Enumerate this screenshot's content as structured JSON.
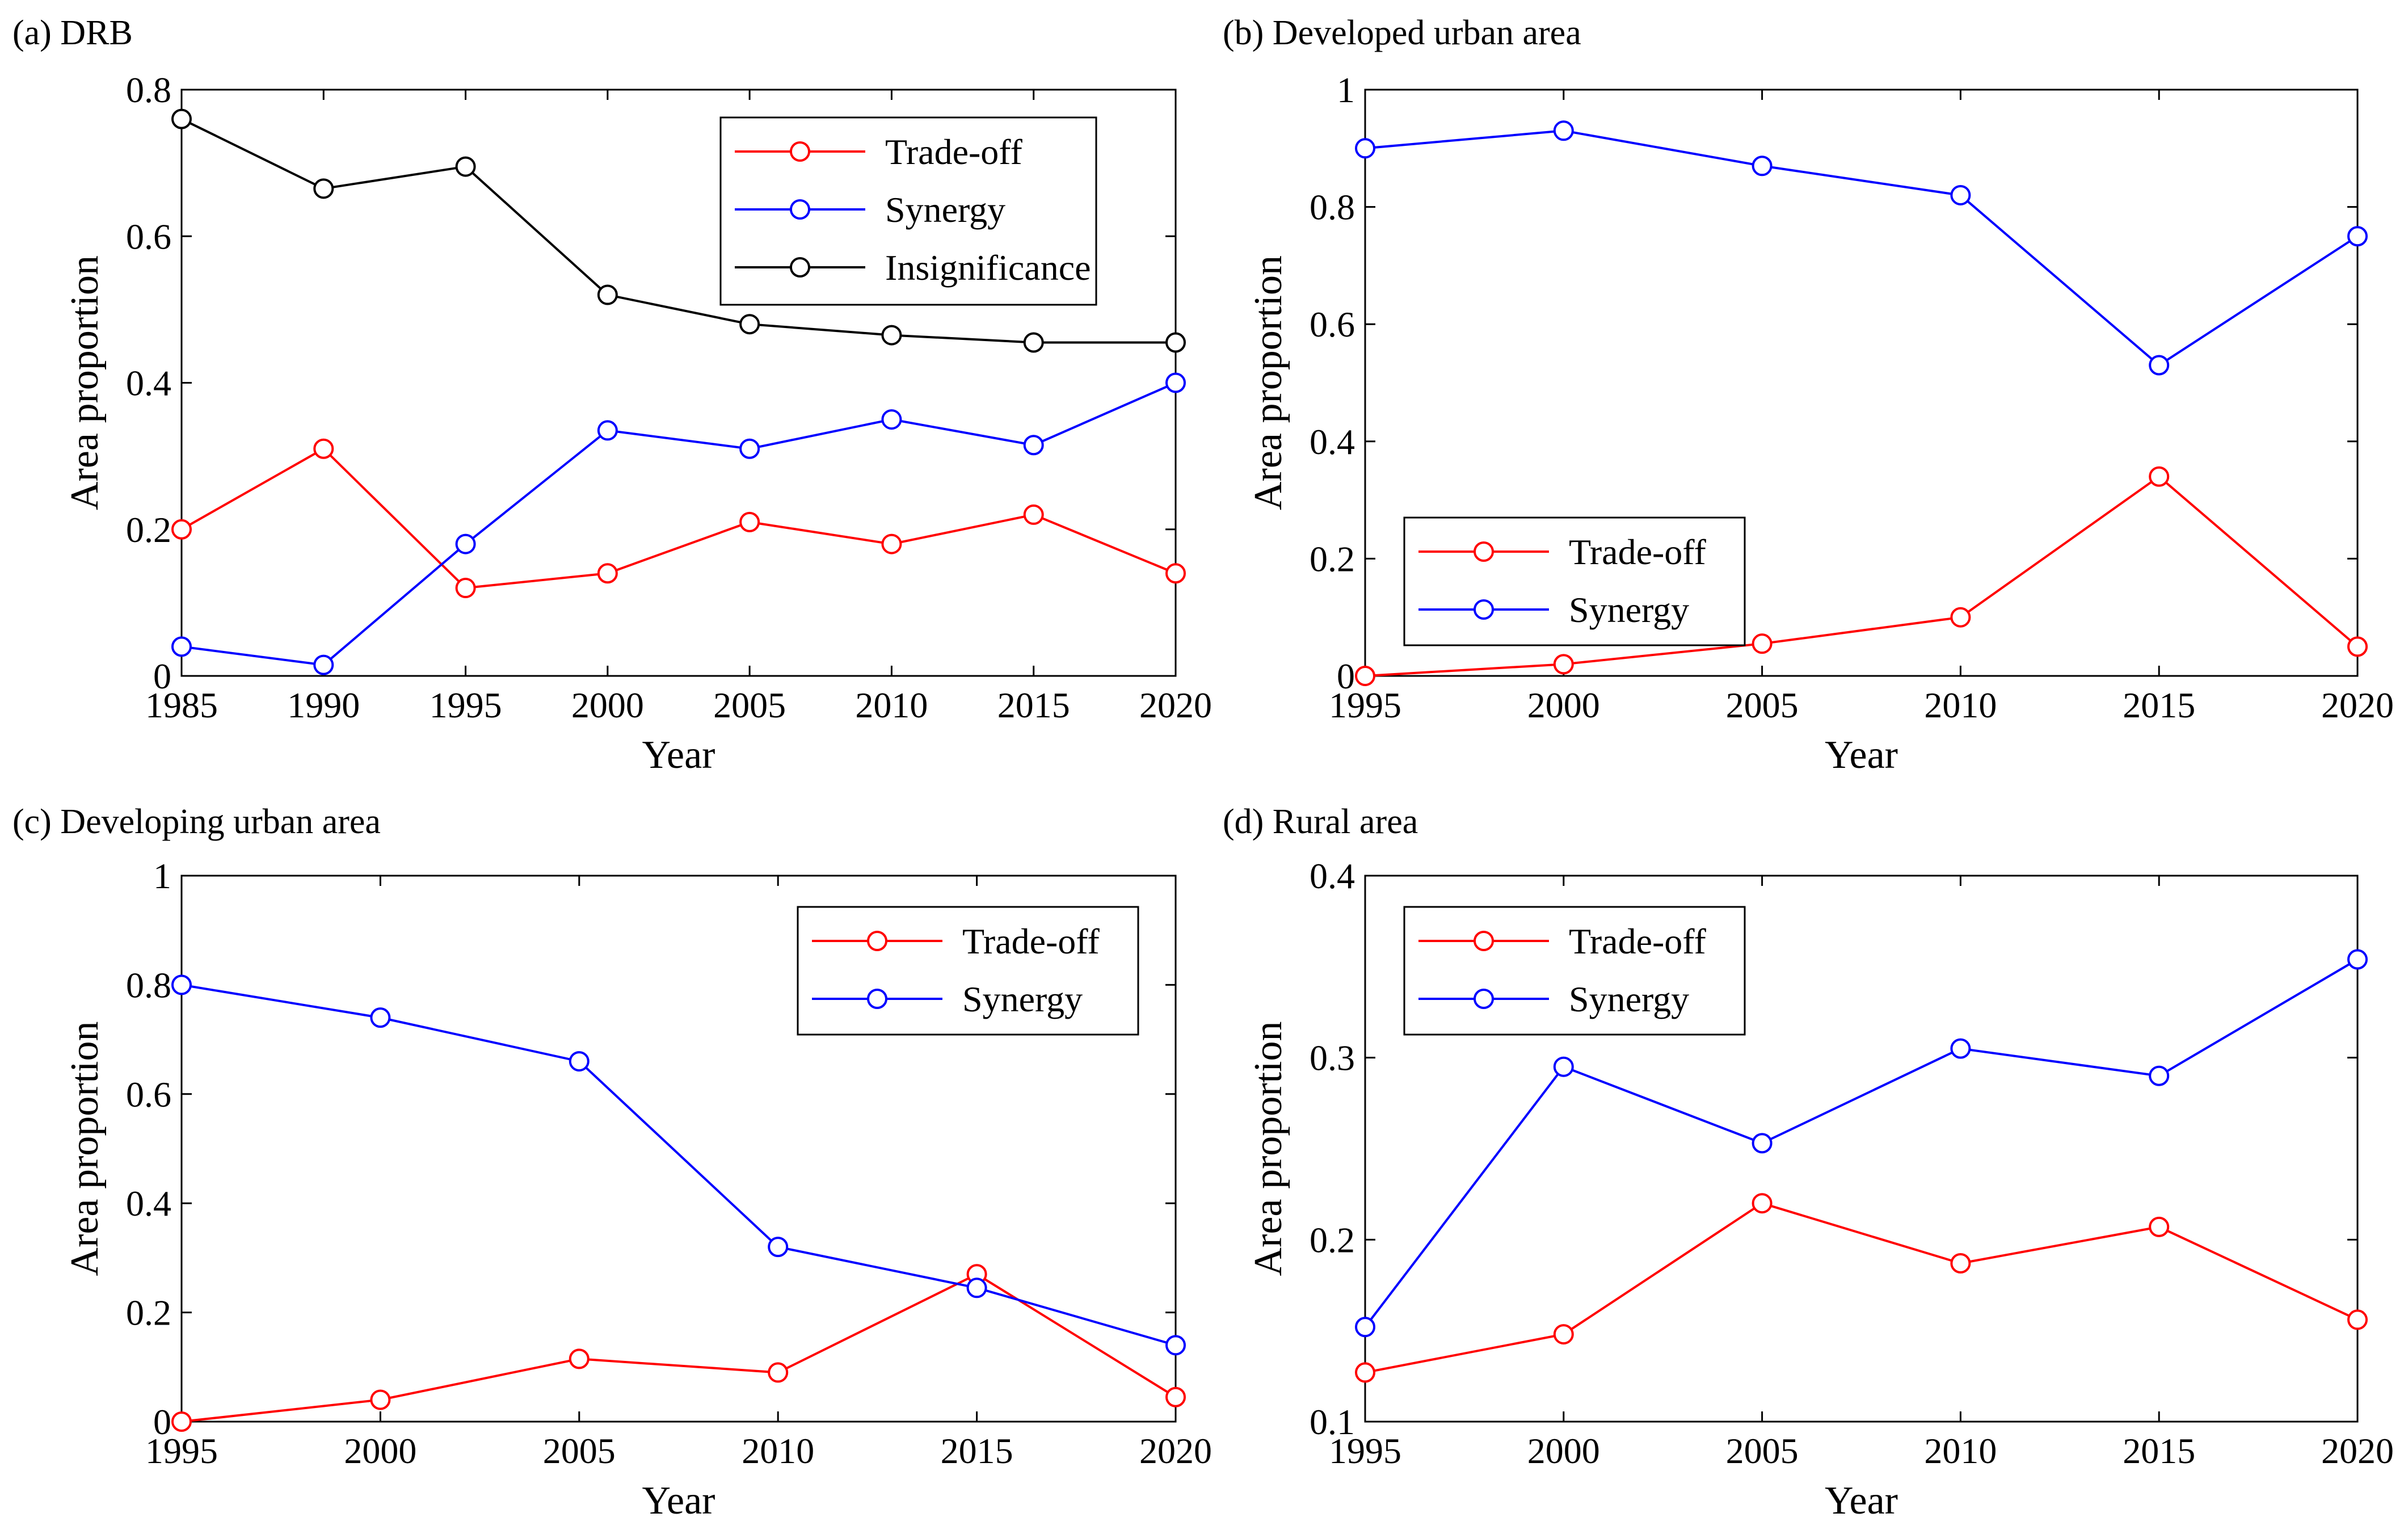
{
  "colors": {
    "tradeoff": "#ff0000",
    "synergy": "#0000ff",
    "insignificance": "#000000"
  },
  "chart_data": [
    {
      "type": "line",
      "panel_title": "(a) DRB",
      "xlabel": "Year",
      "ylabel": "Area proportion",
      "x": [
        1985,
        1990,
        1995,
        2000,
        2005,
        2010,
        2015,
        2020
      ],
      "xlim": [
        1985,
        2020
      ],
      "ylim": [
        0,
        0.8
      ],
      "xtick_labels": [
        "1985",
        "1990",
        "1995",
        "2000",
        "2005",
        "2010",
        "2015",
        "2020"
      ],
      "ytick_values": [
        0,
        0.2,
        0.4,
        0.6,
        0.8
      ],
      "ytick_labels": [
        "0",
        "0.2",
        "0.4",
        "0.6",
        "0.8"
      ],
      "legend_position": "top-right",
      "series": [
        {
          "name": "Trade-off",
          "color": "#ff0000",
          "values": [
            0.2,
            0.31,
            0.12,
            0.14,
            0.21,
            0.18,
            0.22,
            0.14
          ]
        },
        {
          "name": "Synergy",
          "color": "#0000ff",
          "values": [
            0.04,
            0.015,
            0.18,
            0.335,
            0.31,
            0.35,
            0.315,
            0.4
          ]
        },
        {
          "name": "Insignificance",
          "color": "#000000",
          "values": [
            0.76,
            0.665,
            0.695,
            0.52,
            0.48,
            0.465,
            0.455,
            0.455
          ]
        }
      ]
    },
    {
      "type": "line",
      "panel_title": "(b) Developed urban area",
      "xlabel": "Year",
      "ylabel": "Area proportion",
      "x": [
        1995,
        2000,
        2005,
        2010,
        2015,
        2020
      ],
      "xlim": [
        1995,
        2020
      ],
      "ylim": [
        0,
        1
      ],
      "xtick_labels": [
        "1995",
        "2000",
        "2005",
        "2010",
        "2015",
        "2020"
      ],
      "ytick_values": [
        0,
        0.2,
        0.4,
        0.6,
        0.8,
        1
      ],
      "ytick_labels": [
        "0",
        "0.2",
        "0.4",
        "0.6",
        "0.8",
        "1"
      ],
      "legend_position": "bottom-left",
      "series": [
        {
          "name": "Trade-off",
          "color": "#ff0000",
          "values": [
            0.0,
            0.02,
            0.055,
            0.1,
            0.34,
            0.05
          ]
        },
        {
          "name": "Synergy",
          "color": "#0000ff",
          "values": [
            0.9,
            0.93,
            0.87,
            0.82,
            0.53,
            0.75
          ]
        }
      ]
    },
    {
      "type": "line",
      "panel_title": "(c) Developing urban area",
      "xlabel": "Year",
      "ylabel": "Area proportion",
      "x": [
        1995,
        2000,
        2005,
        2010,
        2015,
        2020
      ],
      "xlim": [
        1995,
        2020
      ],
      "ylim": [
        0,
        1
      ],
      "xtick_labels": [
        "1995",
        "2000",
        "2005",
        "2010",
        "2015",
        "2020"
      ],
      "ytick_values": [
        0,
        0.2,
        0.4,
        0.6,
        0.8,
        1
      ],
      "ytick_labels": [
        "0",
        "0.2",
        "0.4",
        "0.6",
        "0.8",
        "1"
      ],
      "legend_position": "top-right",
      "series": [
        {
          "name": "Trade-off",
          "color": "#ff0000",
          "values": [
            0.0,
            0.04,
            0.115,
            0.09,
            0.27,
            0.045
          ]
        },
        {
          "name": "Synergy",
          "color": "#0000ff",
          "values": [
            0.8,
            0.74,
            0.66,
            0.32,
            0.245,
            0.14
          ]
        }
      ]
    },
    {
      "type": "line",
      "panel_title": "(d) Rural area",
      "xlabel": "Year",
      "ylabel": "Area proportion",
      "x": [
        1995,
        2000,
        2005,
        2010,
        2015,
        2020
      ],
      "xlim": [
        1995,
        2020
      ],
      "ylim": [
        0.1,
        0.4
      ],
      "xtick_labels": [
        "1995",
        "2000",
        "2005",
        "2010",
        "2015",
        "2020"
      ],
      "ytick_values": [
        0.1,
        0.2,
        0.3,
        0.4
      ],
      "ytick_labels": [
        "0.1",
        "0.2",
        "0.3",
        "0.4"
      ],
      "legend_position": "top-left",
      "series": [
        {
          "name": "Trade-off",
          "color": "#ff0000",
          "values": [
            0.127,
            0.148,
            0.22,
            0.187,
            0.207,
            0.156
          ]
        },
        {
          "name": "Synergy",
          "color": "#0000ff",
          "values": [
            0.152,
            0.295,
            0.253,
            0.305,
            0.29,
            0.354
          ]
        }
      ]
    }
  ]
}
